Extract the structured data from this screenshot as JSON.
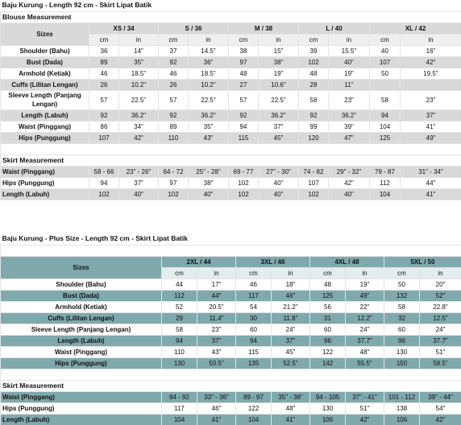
{
  "section1": {
    "title": "Baju Kurung - Length 92 cm - Skirt Lipat Batik",
    "blouse_heading": "Blouse Measurement",
    "sizes_label": "Sizes",
    "sizes": [
      "XS / 34",
      "S / 36",
      "M / 38",
      "L / 40",
      "XL / 42"
    ],
    "unit_cm": "cm",
    "unit_in": "in",
    "blouse_rows": [
      {
        "label": "Shoulder (Bahu)",
        "v": [
          "36",
          "14\"",
          "37",
          "14.5\"",
          "38",
          "15\"",
          "39",
          "15.5\"",
          "40",
          "16\""
        ]
      },
      {
        "label": "Bust (Dada)",
        "v": [
          "89",
          "35\"",
          "92",
          "36\"",
          "97",
          "38\"",
          "102",
          "40\"",
          "107",
          "42\""
        ]
      },
      {
        "label": "Armhold (Ketiak)",
        "v": [
          "46",
          "18.5\"",
          "46",
          "18.5\"",
          "48",
          "19\"",
          "48",
          "19\"",
          "50",
          "19.5\""
        ]
      },
      {
        "label": "Cuffs (Lilitan Lengan)",
        "v": [
          "26",
          "10.2\"",
          "26",
          "10.2\"",
          "27",
          "10.6\"",
          "28",
          "11\"",
          "",
          ""
        ]
      },
      {
        "label": "Sleeve Length (Panjang Lengan)",
        "v": [
          "57",
          "22.5\"",
          "57",
          "22.5\"",
          "57",
          "22.5\"",
          "58",
          "23\"",
          "58",
          "23\""
        ]
      },
      {
        "label": "Length (Labuh)",
        "v": [
          "92",
          "36.2\"",
          "92",
          "36.2\"",
          "92",
          "36.2\"",
          "92",
          "36.2\"",
          "94",
          "37\""
        ]
      },
      {
        "label": "Waist (Pinggang)",
        "v": [
          "86",
          "34\"",
          "89",
          "35\"",
          "94",
          "37\"",
          "99",
          "39\"",
          "104",
          "41\""
        ]
      },
      {
        "label": "Hips (Punggung)",
        "v": [
          "107",
          "42\"",
          "110",
          "43\"",
          "115",
          "45\"",
          "120",
          "47\"",
          "125",
          "49\""
        ]
      }
    ],
    "skirt_heading": "Skirt Measurement",
    "skirt_rows": [
      {
        "label": "Waist (Pinggang)",
        "v": [
          "58 - 66",
          "23\" - 26\"",
          "64 - 72",
          "25\" - 28\"",
          "69 - 77",
          "27\" - 30\"",
          "74 - 82",
          "29\" - 32\"",
          "79 - 87",
          "31\" - 34\""
        ]
      },
      {
        "label": "Hips (Punggung)",
        "v": [
          "94",
          "37\"",
          "97",
          "38\"",
          "102",
          "40\"",
          "107",
          "42\"",
          "112",
          "44\""
        ]
      },
      {
        "label": "Length (Labuh)",
        "v": [
          "102",
          "40\"",
          "102",
          "40\"",
          "102",
          "40\"",
          "102",
          "40\"",
          "104",
          "41\""
        ]
      }
    ]
  },
  "section2": {
    "title": "Baju Kurung - Plus Size - Length 92 cm - Skirt Lipat Batik",
    "sizes_label": "Sizes",
    "sizes": [
      "2XL / 44",
      "3XL / 46",
      "4XL / 48",
      "5XL / 50"
    ],
    "unit_cm": "cm",
    "unit_in": "in",
    "blouse_rows": [
      {
        "label": "Shoulder (Bahu)",
        "v": [
          "44",
          "17\"",
          "46",
          "18\"",
          "48",
          "19\"",
          "50",
          "20\""
        ]
      },
      {
        "label": "Bust (Dada)",
        "v": [
          "112",
          "44\"",
          "117",
          "46\"",
          "125",
          "49\"",
          "132",
          "52\""
        ]
      },
      {
        "label": "Armhold (Ketiak)",
        "v": [
          "52",
          "20.5\"",
          "54",
          "21.2\"",
          "56",
          "22\"",
          "58",
          "22.8\""
        ]
      },
      {
        "label": "Cuffs (Lilitan Lengan)",
        "v": [
          "29",
          "11.4\"",
          "30",
          "11.8\"",
          "31",
          "12.2\"",
          "32",
          "12.5\""
        ]
      },
      {
        "label": "Sleeve Length (Panjang Lengan)",
        "v": [
          "58",
          "23\"",
          "60",
          "24\"",
          "60",
          "24\"",
          "60",
          "24\""
        ]
      },
      {
        "label": "Length (Labuh)",
        "v": [
          "94",
          "37\"",
          "94",
          "37\"",
          "96",
          "37.7\"",
          "96",
          "37.7\""
        ]
      },
      {
        "label": "Waist (Pinggang)",
        "v": [
          "110",
          "43\"",
          "115",
          "45\"",
          "122",
          "48\"",
          "130",
          "51\""
        ]
      },
      {
        "label": "Hips (Punggung)",
        "v": [
          "130",
          "50.5\"",
          "135",
          "52.5\"",
          "142",
          "55.5\"",
          "150",
          "58.5\""
        ]
      }
    ],
    "skirt_heading": "Skirt Measurement",
    "skirt_rows": [
      {
        "label": "Waist (Pinggang)",
        "v": [
          "84 - 92",
          "33\" - 36\"",
          "89 - 97",
          "35\" - 38\"",
          "94 - 105",
          "37\" - 41\"",
          "101 - 112",
          "39\" - 44\""
        ]
      },
      {
        "label": "Hips (Punggung)",
        "v": [
          "117",
          "46\"",
          "122",
          "48\"",
          "130",
          "51\"",
          "138",
          "54\""
        ]
      },
      {
        "label": "Length (Labuh)",
        "v": [
          "104",
          "41\"",
          "104",
          "41\"",
          "106",
          "42\"",
          "106",
          "42\""
        ]
      }
    ]
  },
  "colors": {
    "header_grey": "#d9d9d9",
    "light_grey": "#efefef",
    "teal": "#7fa9ad",
    "teal_light": "#e4ecec"
  }
}
